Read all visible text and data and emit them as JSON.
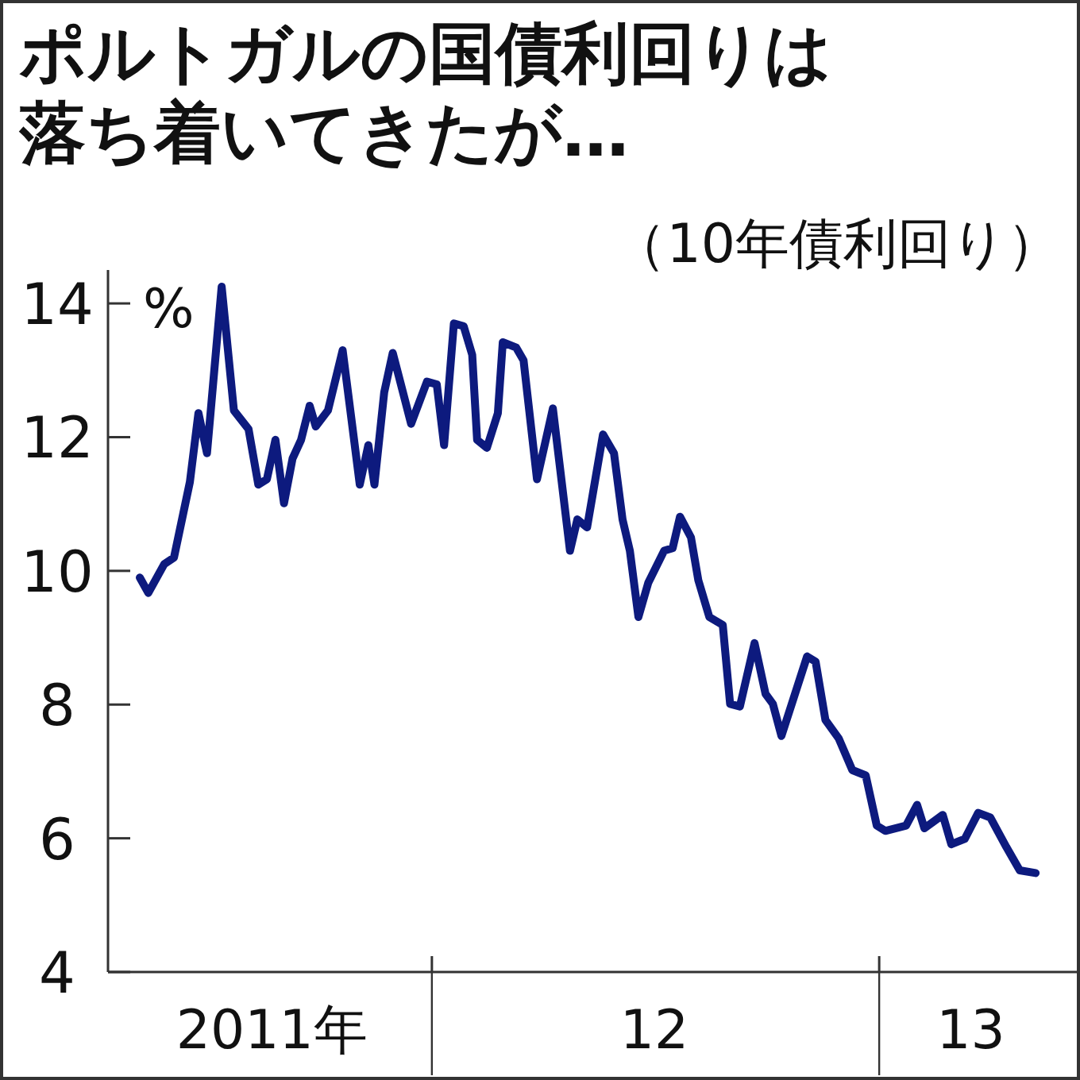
{
  "chart_data": {
    "type": "line",
    "title": "ポルトガルの国債利回りは落ち着いてきたが…",
    "subtitle": "（10年債利回り）",
    "ylabel": "%",
    "xlim": [
      "2011-04-11",
      "2013-06-13"
    ],
    "ylim": [
      4,
      14.5
    ],
    "yticks": [
      4,
      6,
      8,
      10,
      12,
      14
    ],
    "xticks": [
      {
        "value": "2012-01-01",
        "label": null
      },
      {
        "value": "2013-01-01",
        "label": null
      },
      {
        "value": "2011-08-23",
        "label": "2011年"
      },
      {
        "value": "2012-07-01",
        "label": "12"
      },
      {
        "value": "2013-03-17",
        "label": "13"
      }
    ],
    "x": [
      "2011-05-07",
      "2011-05-14",
      "2011-05-27",
      "2011-06-04",
      "2011-06-17",
      "2011-06-24",
      "2011-07-01",
      "2011-07-13",
      "2011-07-23",
      "2011-08-04",
      "2011-08-12",
      "2011-08-19",
      "2011-08-26",
      "2011-09-02",
      "2011-09-09",
      "2011-09-16",
      "2011-09-23",
      "2011-09-28",
      "2011-10-08",
      "2011-10-20",
      "2011-11-03",
      "2011-11-10",
      "2011-11-15",
      "2011-11-23",
      "2011-11-30",
      "2011-12-15",
      "2011-12-28",
      "2012-01-05",
      "2012-01-11",
      "2012-01-19",
      "2012-01-27",
      "2012-02-03",
      "2012-02-07",
      "2012-02-15",
      "2012-02-24",
      "2012-02-28",
      "2012-03-10",
      "2012-03-16",
      "2012-03-27",
      "2012-04-09",
      "2012-04-23",
      "2012-04-29",
      "2012-05-07",
      "2012-05-20",
      "2012-05-29",
      "2012-06-05",
      "2012-06-11",
      "2012-06-18",
      "2012-06-26",
      "2012-07-09",
      "2012-07-16",
      "2012-07-22",
      "2012-07-31",
      "2012-08-06",
      "2012-08-15",
      "2012-08-26",
      "2012-09-01",
      "2012-09-09",
      "2012-09-21",
      "2012-09-30",
      "2012-10-06",
      "2012-10-13",
      "2012-11-03",
      "2012-11-10",
      "2012-11-18",
      "2012-11-29",
      "2012-12-10",
      "2012-12-21",
      "2012-12-30",
      "2013-01-06",
      "2013-01-23",
      "2013-02-01",
      "2013-02-07",
      "2013-02-22",
      "2013-03-01",
      "2013-03-12",
      "2013-03-23",
      "2013-04-02",
      "2013-04-15",
      "2013-04-26",
      "2013-05-09"
    ],
    "series": [
      {
        "color": "#0d1a7e",
        "values": [
          9.9,
          9.67,
          10.1,
          10.2,
          11.33,
          12.36,
          11.76,
          14.25,
          12.4,
          12.12,
          11.29,
          11.37,
          11.96,
          11.01,
          11.68,
          11.96,
          12.47,
          12.16,
          12.4,
          13.3,
          11.29,
          11.88,
          11.29,
          12.67,
          13.26,
          12.2,
          12.83,
          12.79,
          11.88,
          13.7,
          13.66,
          13.23,
          11.96,
          11.84,
          12.36,
          13.42,
          13.34,
          13.15,
          11.37,
          12.43,
          10.3,
          10.77,
          10.65,
          12.04,
          11.76,
          10.77,
          10.3,
          9.31,
          9.82,
          10.3,
          10.34,
          10.81,
          10.5,
          9.86,
          9.31,
          9.19,
          8.01,
          7.97,
          8.92,
          8.16,
          8.01,
          7.53,
          8.72,
          8.64,
          7.77,
          7.49,
          7.02,
          6.94,
          6.19,
          6.11,
          6.19,
          6.5,
          6.15,
          6.35,
          5.91,
          5.99,
          6.38,
          6.31,
          5.87,
          5.52,
          5.48
        ]
      }
    ]
  }
}
